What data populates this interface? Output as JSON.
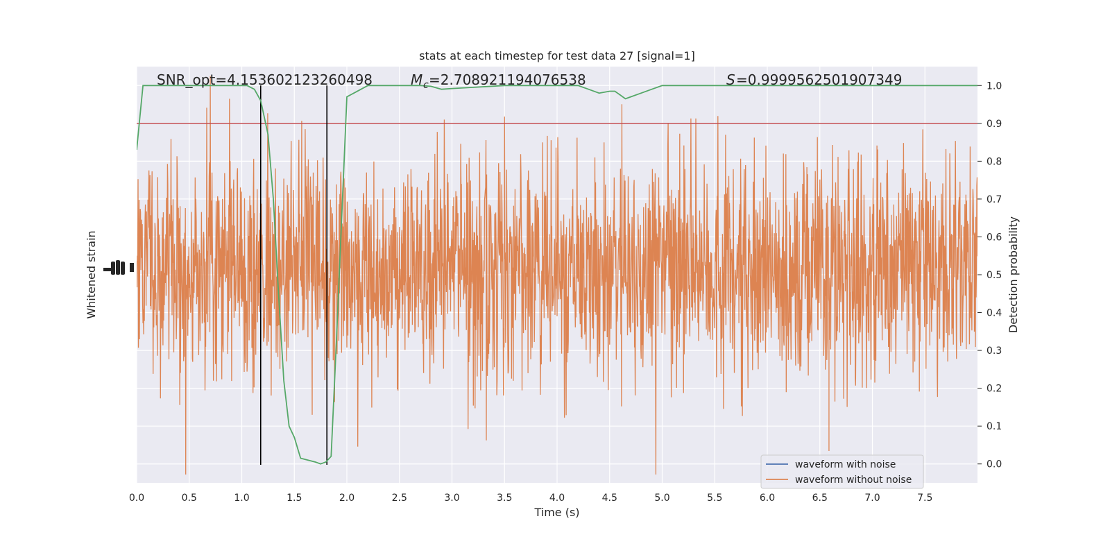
{
  "chart_data": {
    "type": "line",
    "title": "stats at each timestep for test data 27 [signal=1]",
    "xlabel": "Time (s)",
    "ylabel_left": "Whitened strain",
    "ylabel_right": "Detection probability",
    "xlim": [
      0.0,
      8.0
    ],
    "ylim_right": [
      -0.05,
      1.05
    ],
    "x_ticks": [
      "0.0",
      "0.5",
      "1.0",
      "1.5",
      "2.0",
      "2.5",
      "3.0",
      "3.5",
      "4.0",
      "4.5",
      "5.0",
      "5.5",
      "6.0",
      "6.5",
      "7.0",
      "7.5"
    ],
    "y_ticks_right": [
      "0.0",
      "0.1",
      "0.2",
      "0.3",
      "0.4",
      "0.5",
      "0.6",
      "0.7",
      "0.8",
      "0.9",
      "1.0"
    ],
    "grid": true,
    "legend_position": "lower-right",
    "annotations": {
      "snr": "SNR_opt=4.153602123260498",
      "mc": "=2.708921194076538",
      "s": "=0.9999562501907349"
    },
    "threshold": 0.9,
    "vertical_lines_x": [
      1.18,
      1.81
    ],
    "series": [
      {
        "name": "waveform with noise",
        "color": "#4c72b0"
      },
      {
        "name": "waveform without noise",
        "color": "#dd8452"
      },
      {
        "color": "#55a868",
        "x": [
          0.0,
          0.06,
          0.12,
          0.2,
          0.4,
          0.6,
          0.8,
          0.95,
          1.05,
          1.12,
          1.18,
          1.25,
          1.3,
          1.35,
          1.4,
          1.45,
          1.5,
          1.56,
          1.7,
          1.75,
          1.8,
          1.85,
          1.9,
          2.0,
          2.2,
          2.5,
          2.7,
          2.8,
          2.9,
          3.0,
          3.5,
          4.0,
          4.2,
          4.3,
          4.4,
          4.5,
          4.55,
          4.6,
          4.65,
          4.7,
          4.8,
          4.9,
          5.0,
          5.2,
          5.5,
          6.0,
          7.0,
          8.0
        ],
        "values": [
          0.83,
          1.0,
          1.0,
          1.0,
          1.0,
          1.0,
          1.0,
          1.0,
          1.0,
          0.99,
          0.96,
          0.87,
          0.7,
          0.45,
          0.22,
          0.1,
          0.07,
          0.015,
          0.005,
          0.0,
          0.005,
          0.02,
          0.32,
          0.97,
          1.0,
          1.0,
          1.0,
          0.998,
          0.99,
          0.992,
          1.0,
          1.0,
          1.0,
          0.99,
          0.98,
          0.985,
          0.985,
          0.975,
          0.965,
          0.97,
          0.98,
          0.99,
          1.0,
          1.0,
          1.0,
          1.0,
          1.0,
          1.0
        ]
      }
    ]
  }
}
